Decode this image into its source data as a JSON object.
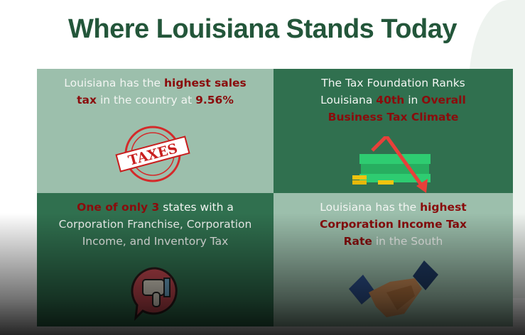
{
  "title": "Where Louisiana Stands Today",
  "cells": [
    {
      "parts": [
        "Louisiana has the ",
        "highest sales tax",
        " in the country at ",
        "9.56%"
      ],
      "icon": "taxes-stamp-icon",
      "stamp_text": "TAXES"
    },
    {
      "parts": [
        "The Tax Foundation Ranks Louisiana ",
        "40th",
        " in ",
        "Overall Business Tax Climate"
      ],
      "icon": "money-falling-arrow-icon"
    },
    {
      "parts": [
        "One of only 3",
        " states with a Corporation Franchise, Corporation Income, and Inventory Tax"
      ],
      "icon": "thumbs-down-icon"
    },
    {
      "parts": [
        "Louisiana has the ",
        "highest Corporation Income Tax Rate",
        " in the South"
      ],
      "icon": "handshake-icon"
    }
  ],
  "colors": {
    "title": "#23563a",
    "light_green": "#9cbfac",
    "dark_green": "#30704f",
    "highlight": "#8a0c0c"
  }
}
